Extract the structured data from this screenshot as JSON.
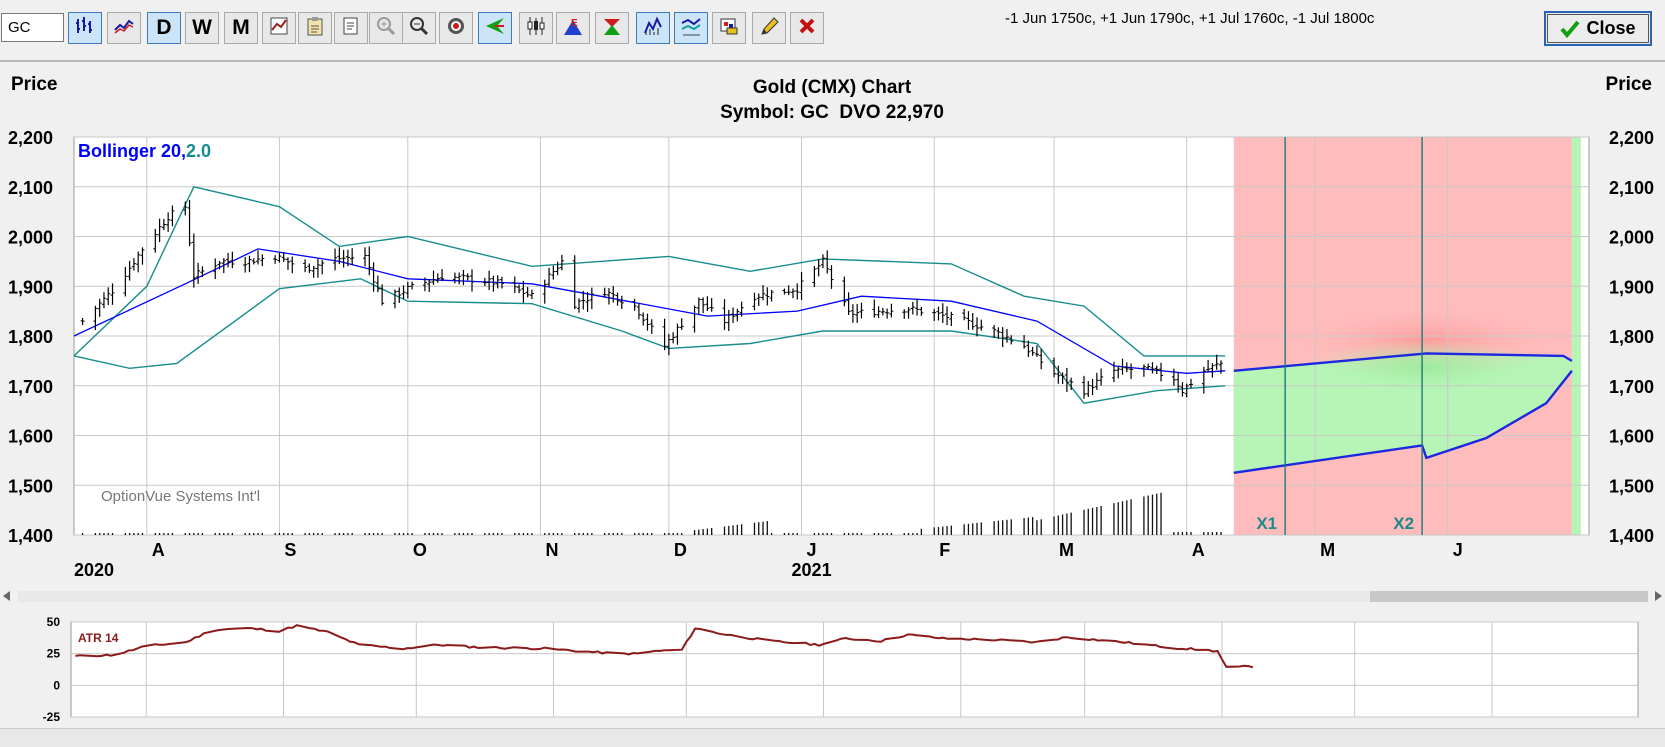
{
  "toolbar": {
    "symbol_value": "GC",
    "strategy": "-1 Jun 1750c, +1 Jun 1790c, +1 Jul 1760c, -1 Jul 1800c",
    "close_label": "Close",
    "buttons": [
      {
        "name": "bar-chart-icon",
        "label": "",
        "active": true
      },
      {
        "name": "line-chart-icon",
        "label": "",
        "active": false
      },
      {
        "name": "daily-button",
        "label": "D",
        "active": true
      },
      {
        "name": "weekly-button",
        "label": "W",
        "active": false
      },
      {
        "name": "monthly-button",
        "label": "M",
        "active": false
      },
      {
        "name": "chart-settings-icon",
        "label": "",
        "active": false
      },
      {
        "name": "clipboard-icon",
        "label": "",
        "active": false
      },
      {
        "name": "print-icon",
        "label": "",
        "active": false
      },
      {
        "name": "zoom-in-icon",
        "label": "",
        "active": false
      },
      {
        "name": "zoom-out-icon",
        "label": "",
        "active": false
      },
      {
        "name": "target-icon",
        "label": "",
        "active": false
      },
      {
        "name": "arrow-left-icon",
        "label": "",
        "active": true
      },
      {
        "name": "candlestick-icon",
        "label": "",
        "active": false
      },
      {
        "name": "earnings-icon",
        "label": "",
        "active": false
      },
      {
        "name": "dividend-icon",
        "label": "",
        "active": false
      },
      {
        "name": "volume-bars-icon",
        "label": "",
        "active": true
      },
      {
        "name": "study-icon",
        "label": "",
        "active": true
      },
      {
        "name": "palette-icon",
        "label": "",
        "active": false
      },
      {
        "name": "pencil-icon",
        "label": "",
        "active": false
      },
      {
        "name": "delete-icon",
        "label": "",
        "active": false
      }
    ]
  },
  "colors": {
    "bollinger_mid": "#0000ff",
    "bollinger_band": "#178c8c",
    "price_bar": "#000000",
    "loss_zone": "#ffbcbc",
    "profit_zone": "#b6f5b6",
    "atr_line": "#8b1a1a"
  },
  "chart_data": [
    {
      "type": "ohlc",
      "title": "Gold (CMX) Chart",
      "subtitle": "Symbol: GC  DVO 22,970",
      "ylabel_left": "Price",
      "ylabel_right": "Price",
      "ylim": [
        1400,
        2200
      ],
      "yticks": [
        1400,
        1500,
        1600,
        1700,
        1800,
        1900,
        2000,
        2100,
        2200
      ],
      "ytick_labels": [
        "1,400",
        "1,500",
        "1,600",
        "1,700",
        "1,800",
        "1,900",
        "2,000",
        "2,100",
        "2,200"
      ],
      "x_months": [
        {
          "label": "A",
          "date": "2020-08-01"
        },
        {
          "label": "S",
          "date": "2020-09-01"
        },
        {
          "label": "O",
          "date": "2020-10-01"
        },
        {
          "label": "N",
          "date": "2020-11-01"
        },
        {
          "label": "D",
          "date": "2020-12-01"
        },
        {
          "label": "J",
          "date": "2021-01-01"
        },
        {
          "label": "F",
          "date": "2021-02-01"
        },
        {
          "label": "M",
          "date": "2021-03-01"
        },
        {
          "label": "A",
          "date": "2021-04-01"
        },
        {
          "label": "M",
          "date": "2021-05-01"
        },
        {
          "label": "J",
          "date": "2021-06-01"
        }
      ],
      "x_years": [
        {
          "label": "2020",
          "date": "2020-07-15"
        },
        {
          "label": "2021",
          "date": "2021-01-01"
        }
      ],
      "x_range": [
        "2020-07-15",
        "2021-07-04"
      ],
      "study_label": {
        "name": "Bollinger ",
        "period": "20,",
        "width": "2.0"
      },
      "watermark": "OptionVue Systems Int'l",
      "price_anchors": [
        [
          "2020-07-17",
          1830
        ],
        [
          "2020-07-25",
          1900
        ],
        [
          "2020-07-31",
          1975
        ],
        [
          "2020-08-06",
          2040
        ],
        [
          "2020-08-10",
          2060
        ],
        [
          "2020-08-12",
          1920
        ],
        [
          "2020-08-18",
          1950
        ],
        [
          "2020-08-24",
          1950
        ],
        [
          "2020-08-31",
          1960
        ],
        [
          "2020-09-07",
          1935
        ],
        [
          "2020-09-14",
          1955
        ],
        [
          "2020-09-21",
          1960
        ],
        [
          "2020-09-25",
          1870
        ],
        [
          "2020-10-01",
          1895
        ],
        [
          "2020-10-09",
          1920
        ],
        [
          "2020-10-15",
          1915
        ],
        [
          "2020-10-23",
          1905
        ],
        [
          "2020-10-30",
          1880
        ],
        [
          "2020-11-06",
          1950
        ],
        [
          "2020-11-09",
          1865
        ],
        [
          "2020-11-16",
          1890
        ],
        [
          "2020-11-23",
          1860
        ],
        [
          "2020-11-30",
          1780
        ],
        [
          "2020-12-08",
          1870
        ],
        [
          "2020-12-14",
          1830
        ],
        [
          "2020-12-21",
          1880
        ],
        [
          "2020-12-31",
          1895
        ],
        [
          "2021-01-06",
          1950
        ],
        [
          "2021-01-12",
          1845
        ],
        [
          "2021-01-19",
          1850
        ],
        [
          "2021-01-26",
          1855
        ],
        [
          "2021-02-01",
          1845
        ],
        [
          "2021-02-08",
          1830
        ],
        [
          "2021-02-15",
          1810
        ],
        [
          "2021-02-22",
          1780
        ],
        [
          "2021-03-01",
          1725
        ],
        [
          "2021-03-08",
          1690
        ],
        [
          "2021-03-15",
          1730
        ],
        [
          "2021-03-22",
          1735
        ],
        [
          "2021-03-29",
          1715
        ],
        [
          "2021-03-31",
          1690
        ],
        [
          "2021-04-05",
          1730
        ],
        [
          "2021-04-09",
          1745
        ]
      ],
      "bollinger_mid": [
        [
          "2020-07-15",
          1800
        ],
        [
          "2020-08-10",
          1905
        ],
        [
          "2020-08-27",
          1975
        ],
        [
          "2020-09-15",
          1950
        ],
        [
          "2020-10-01",
          1915
        ],
        [
          "2020-10-30",
          1905
        ],
        [
          "2020-11-15",
          1880
        ],
        [
          "2020-12-10",
          1840
        ],
        [
          "2020-12-31",
          1850
        ],
        [
          "2021-01-15",
          1880
        ],
        [
          "2021-02-05",
          1870
        ],
        [
          "2021-02-25",
          1830
        ],
        [
          "2021-03-15",
          1740
        ],
        [
          "2021-04-01",
          1725
        ],
        [
          "2021-04-10",
          1730
        ]
      ],
      "bollinger_upper": [
        [
          "2020-07-15",
          1760
        ],
        [
          "2020-08-01",
          1900
        ],
        [
          "2020-08-12",
          2100
        ],
        [
          "2020-09-01",
          2060
        ],
        [
          "2020-09-15",
          1980
        ],
        [
          "2020-10-01",
          2000
        ],
        [
          "2020-10-30",
          1940
        ],
        [
          "2020-11-15",
          1950
        ],
        [
          "2020-12-01",
          1960
        ],
        [
          "2020-12-20",
          1930
        ],
        [
          "2021-01-06",
          1955
        ],
        [
          "2021-02-05",
          1945
        ],
        [
          "2021-02-22",
          1880
        ],
        [
          "2021-03-08",
          1860
        ],
        [
          "2021-03-22",
          1760
        ],
        [
          "2021-04-10",
          1760
        ]
      ],
      "bollinger_lower": [
        [
          "2020-07-15",
          1760
        ],
        [
          "2020-07-28",
          1735
        ],
        [
          "2020-08-08",
          1745
        ],
        [
          "2020-09-01",
          1895
        ],
        [
          "2020-09-20",
          1915
        ],
        [
          "2020-10-01",
          1870
        ],
        [
          "2020-10-30",
          1865
        ],
        [
          "2020-11-20",
          1810
        ],
        [
          "2020-12-01",
          1775
        ],
        [
          "2020-12-20",
          1785
        ],
        [
          "2021-01-06",
          1810
        ],
        [
          "2021-02-05",
          1810
        ],
        [
          "2021-02-25",
          1785
        ],
        [
          "2021-03-08",
          1665
        ],
        [
          "2021-03-25",
          1690
        ],
        [
          "2021-04-10",
          1700
        ]
      ],
      "volume_bars": [
        {
          "from": "2020-07-17",
          "to": "2020-12-31",
          "height": 0.2
        },
        {
          "from": "2020-12-07",
          "to": "2020-12-24",
          "height": 2.8
        },
        {
          "from": "2021-01-04",
          "to": "2021-01-28",
          "height": 0.2
        },
        {
          "from": "2021-01-29",
          "to": "2021-02-24",
          "height": 3.6
        },
        {
          "from": "2021-02-25",
          "to": "2021-03-26",
          "height": 8.5
        },
        {
          "from": "2021-03-29",
          "to": "2021-04-10",
          "height": 0.6
        }
      ],
      "forecast": {
        "start": "2021-04-12",
        "end": "2021-06-30",
        "upper_line": [
          [
            "2021-04-12",
            1730
          ],
          [
            "2021-05-27",
            1765
          ],
          [
            "2021-06-28",
            1760
          ],
          [
            "2021-06-30",
            1750
          ]
        ],
        "lower_line": [
          [
            "2021-04-12",
            1525
          ],
          [
            "2021-05-26",
            1580
          ],
          [
            "2021-05-27",
            1555
          ],
          [
            "2021-06-10",
            1595
          ],
          [
            "2021-06-24",
            1665
          ],
          [
            "2021-06-30",
            1730
          ]
        ]
      },
      "markers": [
        {
          "label": "X1",
          "date": "2021-04-24"
        },
        {
          "label": "X2",
          "date": "2021-05-26"
        }
      ]
    },
    {
      "type": "line",
      "series_name": "ATR 14",
      "ylim": [
        -25,
        50
      ],
      "yticks": [
        -25,
        0,
        25,
        50
      ],
      "values": [
        [
          "2020-07-16",
          23
        ],
        [
          "2020-07-25",
          24
        ],
        [
          "2020-08-01",
          31
        ],
        [
          "2020-08-10",
          34
        ],
        [
          "2020-08-16",
          44
        ],
        [
          "2020-08-24",
          45
        ],
        [
          "2020-08-31",
          43
        ],
        [
          "2020-09-04",
          47
        ],
        [
          "2020-09-11",
          42
        ],
        [
          "2020-09-18",
          32
        ],
        [
          "2020-09-28",
          29
        ],
        [
          "2020-10-06",
          32
        ],
        [
          "2020-10-15",
          30
        ],
        [
          "2020-10-30",
          29
        ],
        [
          "2020-11-15",
          25
        ],
        [
          "2020-11-20",
          25
        ],
        [
          "2020-11-24",
          27
        ],
        [
          "2020-11-30",
          28
        ],
        [
          "2020-12-03",
          45
        ],
        [
          "2020-12-10",
          40
        ],
        [
          "2020-12-20",
          35
        ],
        [
          "2020-12-31",
          32
        ],
        [
          "2021-01-06",
          37
        ],
        [
          "2021-01-14",
          35
        ],
        [
          "2021-01-20",
          40
        ],
        [
          "2021-01-28",
          37
        ],
        [
          "2021-02-08",
          36
        ],
        [
          "2021-02-18",
          34
        ],
        [
          "2021-02-25",
          38
        ],
        [
          "2021-03-10",
          34
        ],
        [
          "2021-03-20",
          30
        ],
        [
          "2021-03-31",
          27
        ],
        [
          "2021-04-02",
          14
        ],
        [
          "2021-04-08",
          15
        ]
      ]
    }
  ]
}
